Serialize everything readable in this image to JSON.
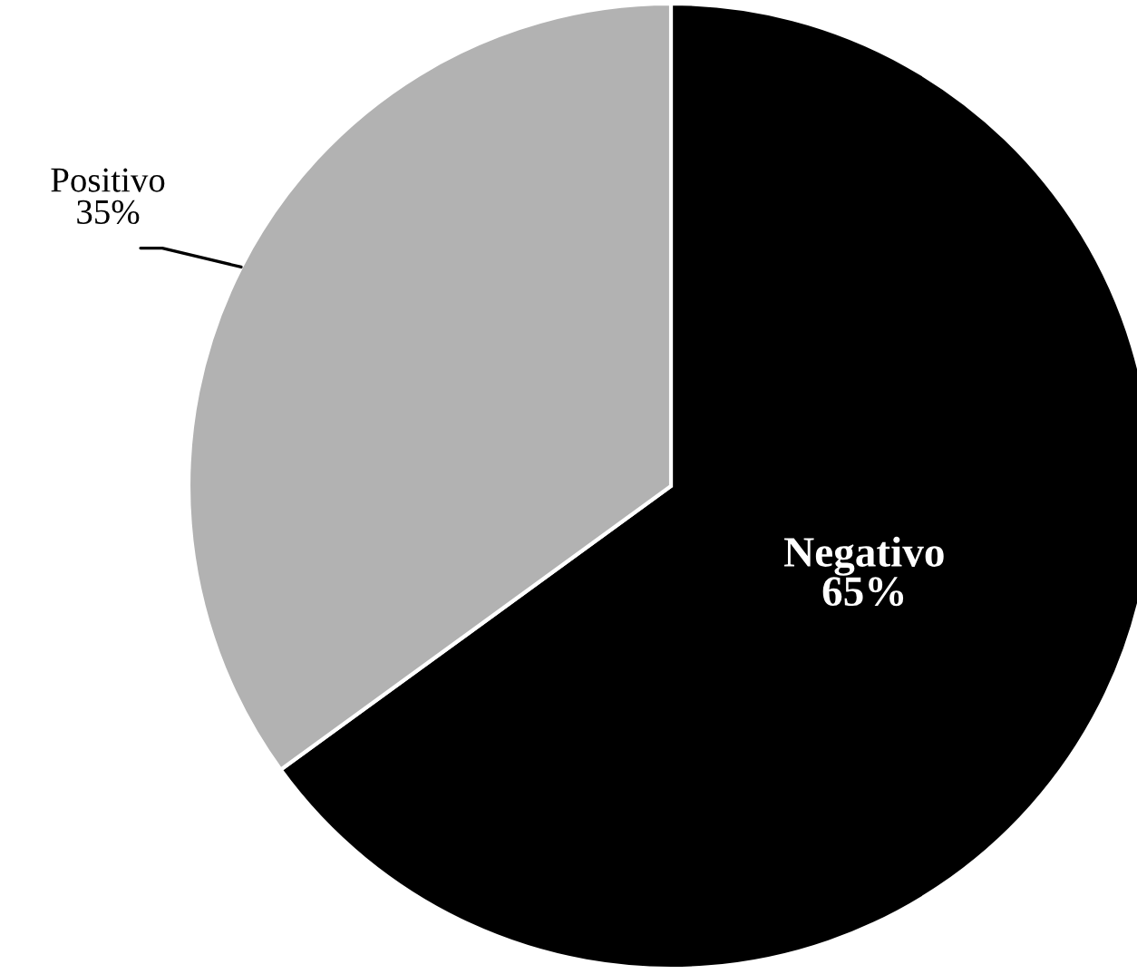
{
  "chart_data": {
    "type": "pie",
    "categories": [
      "Negativo",
      "Positivo"
    ],
    "values": [
      65,
      35
    ],
    "value_labels": [
      "65%",
      "35%"
    ],
    "colors": [
      "#000000",
      "#b2b2b2"
    ]
  }
}
